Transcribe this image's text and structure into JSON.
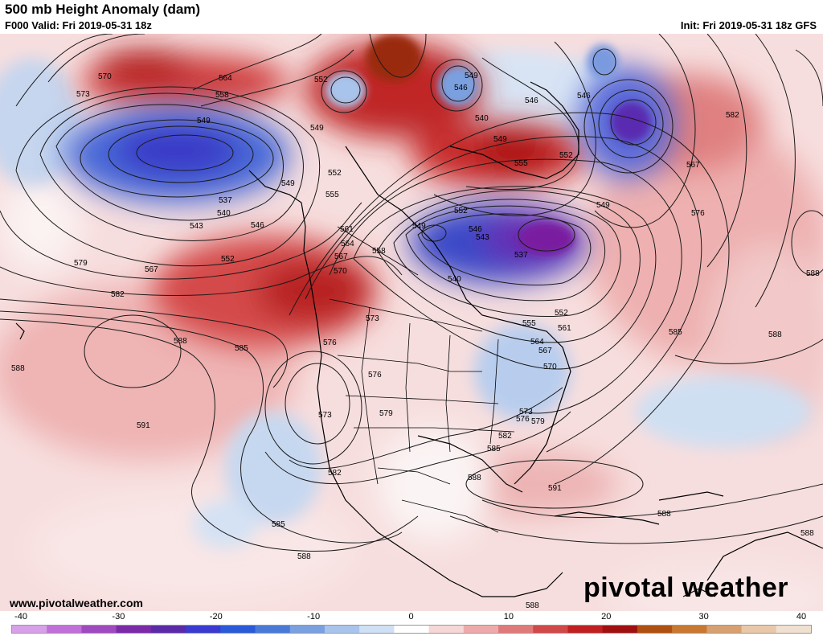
{
  "header": {
    "title": "500 mb Height Anomaly (dam)",
    "valid": "F000 Valid: Fri 2019-05-31 18z",
    "init": "Init: Fri 2019-05-31 18z GFS"
  },
  "footer": {
    "site": "www.pivotalweather.com",
    "brand": "pivotal weather"
  },
  "colorbar": {
    "ticks": [
      "-40",
      "-30",
      "-20",
      "-10",
      "0",
      "10",
      "20",
      "30",
      "40"
    ],
    "colors": [
      "#d8a0e8",
      "#c070d8",
      "#a04ac0",
      "#7b2aa8",
      "#5a2aa8",
      "#3a3ad0",
      "#2a5ad8",
      "#4a7ad8",
      "#7aa0e0",
      "#a8c4ec",
      "#d0e0f4",
      "#ffffff",
      "#f6d6d6",
      "#eeaaaa",
      "#e07a7a",
      "#d04848",
      "#c02020",
      "#a01010",
      "#b05010",
      "#c87830",
      "#d8a070",
      "#e8c8a8",
      "#f0e0d0"
    ]
  },
  "contour_labels": [
    {
      "t": "564"
    },
    {
      "t": "570"
    },
    {
      "t": "573"
    },
    {
      "t": "558"
    },
    {
      "t": "549"
    },
    {
      "t": "552"
    },
    {
      "t": "549"
    },
    {
      "t": "546"
    },
    {
      "t": "549"
    },
    {
      "t": "540"
    },
    {
      "t": "546"
    },
    {
      "t": "546"
    },
    {
      "t": "582"
    },
    {
      "t": "549"
    },
    {
      "t": "552"
    },
    {
      "t": "555"
    },
    {
      "t": "567"
    },
    {
      "t": "549"
    },
    {
      "t": "576"
    },
    {
      "t": "537"
    },
    {
      "t": "540"
    },
    {
      "t": "543"
    },
    {
      "t": "546"
    },
    {
      "t": "549"
    },
    {
      "t": "552"
    },
    {
      "t": "555"
    },
    {
      "t": "552"
    },
    {
      "t": "549"
    },
    {
      "t": "546"
    },
    {
      "t": "543"
    },
    {
      "t": "561"
    },
    {
      "t": "564"
    },
    {
      "t": "567"
    },
    {
      "t": "558"
    },
    {
      "t": "570"
    },
    {
      "t": "537"
    },
    {
      "t": "540"
    },
    {
      "t": "552"
    },
    {
      "t": "555"
    },
    {
      "t": "561"
    },
    {
      "t": "564"
    },
    {
      "t": "567"
    },
    {
      "t": "570"
    },
    {
      "t": "573"
    },
    {
      "t": "576"
    },
    {
      "t": "579"
    },
    {
      "t": "567"
    },
    {
      "t": "552"
    },
    {
      "t": "582"
    },
    {
      "t": "588"
    },
    {
      "t": "585"
    },
    {
      "t": "588"
    },
    {
      "t": "591"
    },
    {
      "t": "585"
    },
    {
      "t": "588"
    },
    {
      "t": "573"
    },
    {
      "t": "576"
    },
    {
      "t": "579"
    },
    {
      "t": "582"
    },
    {
      "t": "582"
    },
    {
      "t": "585"
    },
    {
      "t": "588"
    },
    {
      "t": "573"
    },
    {
      "t": "576"
    },
    {
      "t": "579"
    },
    {
      "t": "591"
    },
    {
      "t": "588"
    },
    {
      "t": "588"
    },
    {
      "t": "588"
    },
    {
      "t": "585"
    },
    {
      "t": "588"
    },
    {
      "t": "588"
    }
  ]
}
